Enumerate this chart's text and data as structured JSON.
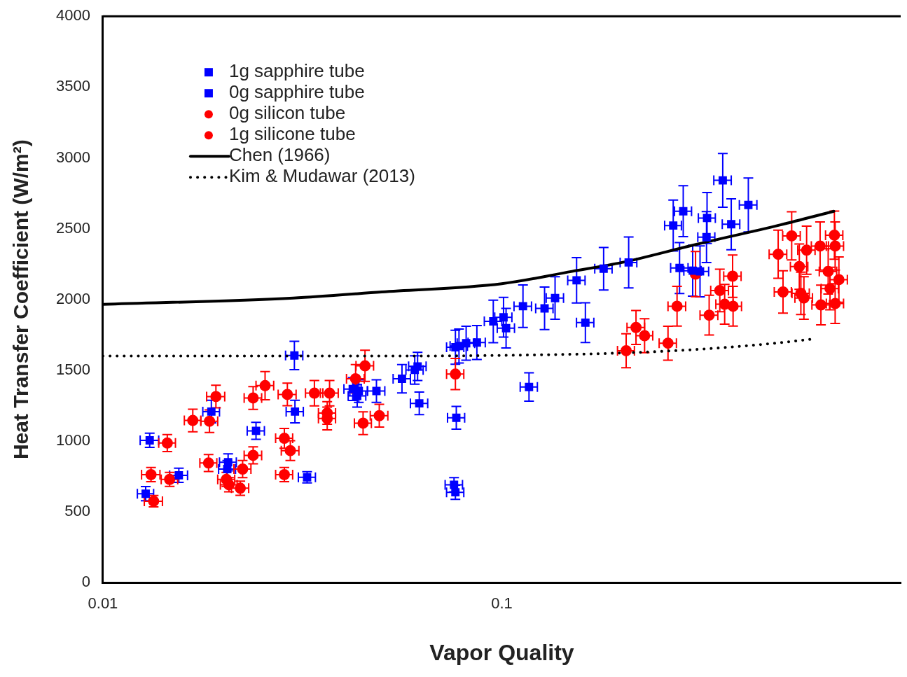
{
  "chart_data": {
    "type": "scatter",
    "xlabel": "Vapor Quality",
    "ylabel": "Heat Transfer Coefficient (W/m²)",
    "log": "x",
    "xlim": [
      0.01,
      1
    ],
    "xticks": [
      0.01,
      0.1
    ],
    "ylim": [
      0,
      4000
    ],
    "yticks": [
      0,
      500,
      1000,
      1500,
      2000,
      2500,
      3000,
      3500,
      4000
    ],
    "grid": false,
    "legend": "top left",
    "series": [
      {
        "name": "1g sapphire tube",
        "marker": "square",
        "color": "#0000ff",
        "x": [
          0.0131,
          0.0128,
          0.0155,
          0.0187,
          0.0206,
          0.0205,
          0.0242,
          0.0303,
          0.0302,
          0.0423,
          0.0434,
          0.0438,
          0.0485,
          0.0562,
          0.0605,
          0.0615,
          0.0765,
          0.0781,
          0.0814,
          0.0866,
          0.0952,
          0.113,
          0.128,
          0.136,
          0.154,
          0.208,
          0.269,
          0.285,
          0.279,
          0.301,
          0.314,
          0.327,
          0.326,
          0.358,
          0.376,
          0.415
        ],
        "values": [
          1005,
          628,
          758,
          1208,
          850,
          802,
          1072,
          1208,
          1604,
          1367,
          1319,
          1353,
          1353,
          1440,
          1502,
          1527,
          1662,
          1671,
          1691,
          1696,
          1845,
          1952,
          1937,
          2010,
          2135,
          2261,
          2522,
          2623,
          2222,
          2203,
          2198,
          2575,
          2440,
          2841,
          2531,
          2667
        ],
        "xerrors": [
          0.0007,
          0.0006,
          0.0008,
          0.0009,
          0.001,
          0.001,
          0.0012,
          0.0015,
          0.0015,
          0.0021,
          0.0022,
          0.0022,
          0.0024,
          0.0028,
          0.003,
          0.0031,
          0.0038,
          0.0039,
          0.0041,
          0.0043,
          0.0048,
          0.0057,
          0.0064,
          0.0068,
          0.0077,
          0.01,
          0.013,
          0.014,
          0.014,
          0.015,
          0.016,
          0.016,
          0.016,
          0.018,
          0.019,
          0.021
        ],
        "errors": [
          50,
          50,
          50,
          80,
          60,
          60,
          60,
          80,
          100,
          80,
          80,
          80,
          80,
          100,
          100,
          100,
          120,
          120,
          120,
          120,
          150,
          150,
          150,
          150,
          160,
          180,
          180,
          180,
          180,
          180,
          180,
          180,
          180,
          190,
          180,
          190
        ]
      },
      {
        "name": "0g sapphire tube",
        "marker": "square",
        "color": "#0000ff",
        "x": [
          0.0325,
          0.0621,
          0.0769,
          0.0759,
          0.0765,
          0.101,
          0.1025,
          0.117,
          0.162,
          0.18
        ],
        "values": [
          744,
          1266,
          1164,
          691,
          638,
          1874,
          1797,
          1382,
          1836,
          2217
        ],
        "xerrors": [
          0.0016,
          0.0031,
          0.0038,
          0.0038,
          0.0038,
          0.005,
          0.0051,
          0.0058,
          0.0081,
          0.009
        ],
        "errors": [
          40,
          80,
          80,
          50,
          50,
          140,
          140,
          100,
          140,
          150
        ]
      },
      {
        "name": "0g silicon tube",
        "marker": "circle",
        "color": "#ff0000",
        "x": [
          0.0145,
          0.0132,
          0.0134,
          0.0147,
          0.0185,
          0.0192,
          0.0184,
          0.0204,
          0.0207,
          0.0221,
          0.0224,
          0.0238,
          0.0238,
          0.0285,
          0.0295,
          0.0285,
          0.029,
          0.0365,
          0.0365,
          0.0449,
          0.205,
          0.217,
          0.228,
          0.261,
          0.38,
          0.493,
          0.507,
          0.533,
          0.628,
          0.658,
          0.682,
          0.685,
          0.7,
          0.665,
          0.631,
          0.685
        ],
        "values": [
          986,
          763,
          575,
          729,
          1140,
          1314,
          845,
          729,
          691,
          667,
          802,
          899,
          1304,
          1019,
          932,
          763,
          1329,
          1198,
          1159,
          1126,
          1638,
          1802,
          1744,
          1691,
          1952,
          2319,
          2053,
          2449,
          2377,
          2198,
          2454,
          2377,
          2140,
          2077,
          1961,
          1971
        ],
        "xerrors": [
          0.0007,
          0.0007,
          0.0007,
          0.0007,
          0.0009,
          0.001,
          0.0009,
          0.001,
          0.001,
          0.0011,
          0.0011,
          0.0012,
          0.0012,
          0.0014,
          0.0015,
          0.0014,
          0.0015,
          0.0018,
          0.0018,
          0.0022,
          0.01,
          0.011,
          0.011,
          0.013,
          0.019,
          0.025,
          0.025,
          0.027,
          0.031,
          0.033,
          0.034,
          0.034,
          0.035,
          0.033,
          0.032,
          0.034
        ],
        "errors": [
          60,
          50,
          40,
          50,
          80,
          80,
          60,
          50,
          50,
          50,
          60,
          60,
          80,
          70,
          70,
          50,
          80,
          80,
          80,
          80,
          120,
          120,
          120,
          120,
          140,
          170,
          150,
          170,
          170,
          160,
          170,
          170,
          160,
          150,
          140,
          140
        ]
      },
      {
        "name": "1g silicone tube",
        "marker": "circle",
        "color": "#ff0000",
        "x": [
          0.0168,
          0.0255,
          0.0339,
          0.037,
          0.043,
          0.0454,
          0.0493,
          0.0765,
          0.275,
          0.306,
          0.331,
          0.352,
          0.362,
          0.379,
          0.557,
          0.581,
          0.562,
          0.572
        ],
        "values": [
          1145,
          1391,
          1338,
          1338,
          1440,
          1531,
          1179,
          1473,
          1952,
          2179,
          1889,
          2063,
          1966,
          2164,
          2232,
          2348,
          2043,
          2010
        ],
        "xerrors": [
          0.0008,
          0.0013,
          0.0017,
          0.0019,
          0.0022,
          0.0023,
          0.0025,
          0.0038,
          0.014,
          null,
          0.017,
          0.018,
          0.018,
          0.019,
          0.028,
          0.029,
          0.028,
          0.029
        ],
        "errors": [
          80,
          100,
          90,
          90,
          100,
          110,
          80,
          110,
          140,
          160,
          140,
          150,
          140,
          150,
          160,
          170,
          150,
          150
        ]
      },
      {
        "name": "Chen (1966)",
        "type": "line",
        "marker": "none",
        "line_style": "solid",
        "color": "#000000",
        "x": [
          0.01,
          0.03,
          0.05,
          0.1,
          0.15,
          0.2,
          0.3,
          0.5,
          0.68
        ],
        "values": [
          1965,
          2010,
          2053,
          2111,
          2198,
          2261,
          2382,
          2527,
          2623
        ]
      },
      {
        "name": "Kim & Mudawar (2013)",
        "type": "line",
        "marker": "none",
        "line_style": "dotted",
        "color": "#000000",
        "x": [
          0.01,
          0.05,
          0.1,
          0.2,
          0.3,
          0.4,
          0.5,
          0.6
        ],
        "values": [
          1600,
          1600,
          1605,
          1622,
          1645,
          1670,
          1695,
          1720
        ]
      }
    ]
  }
}
